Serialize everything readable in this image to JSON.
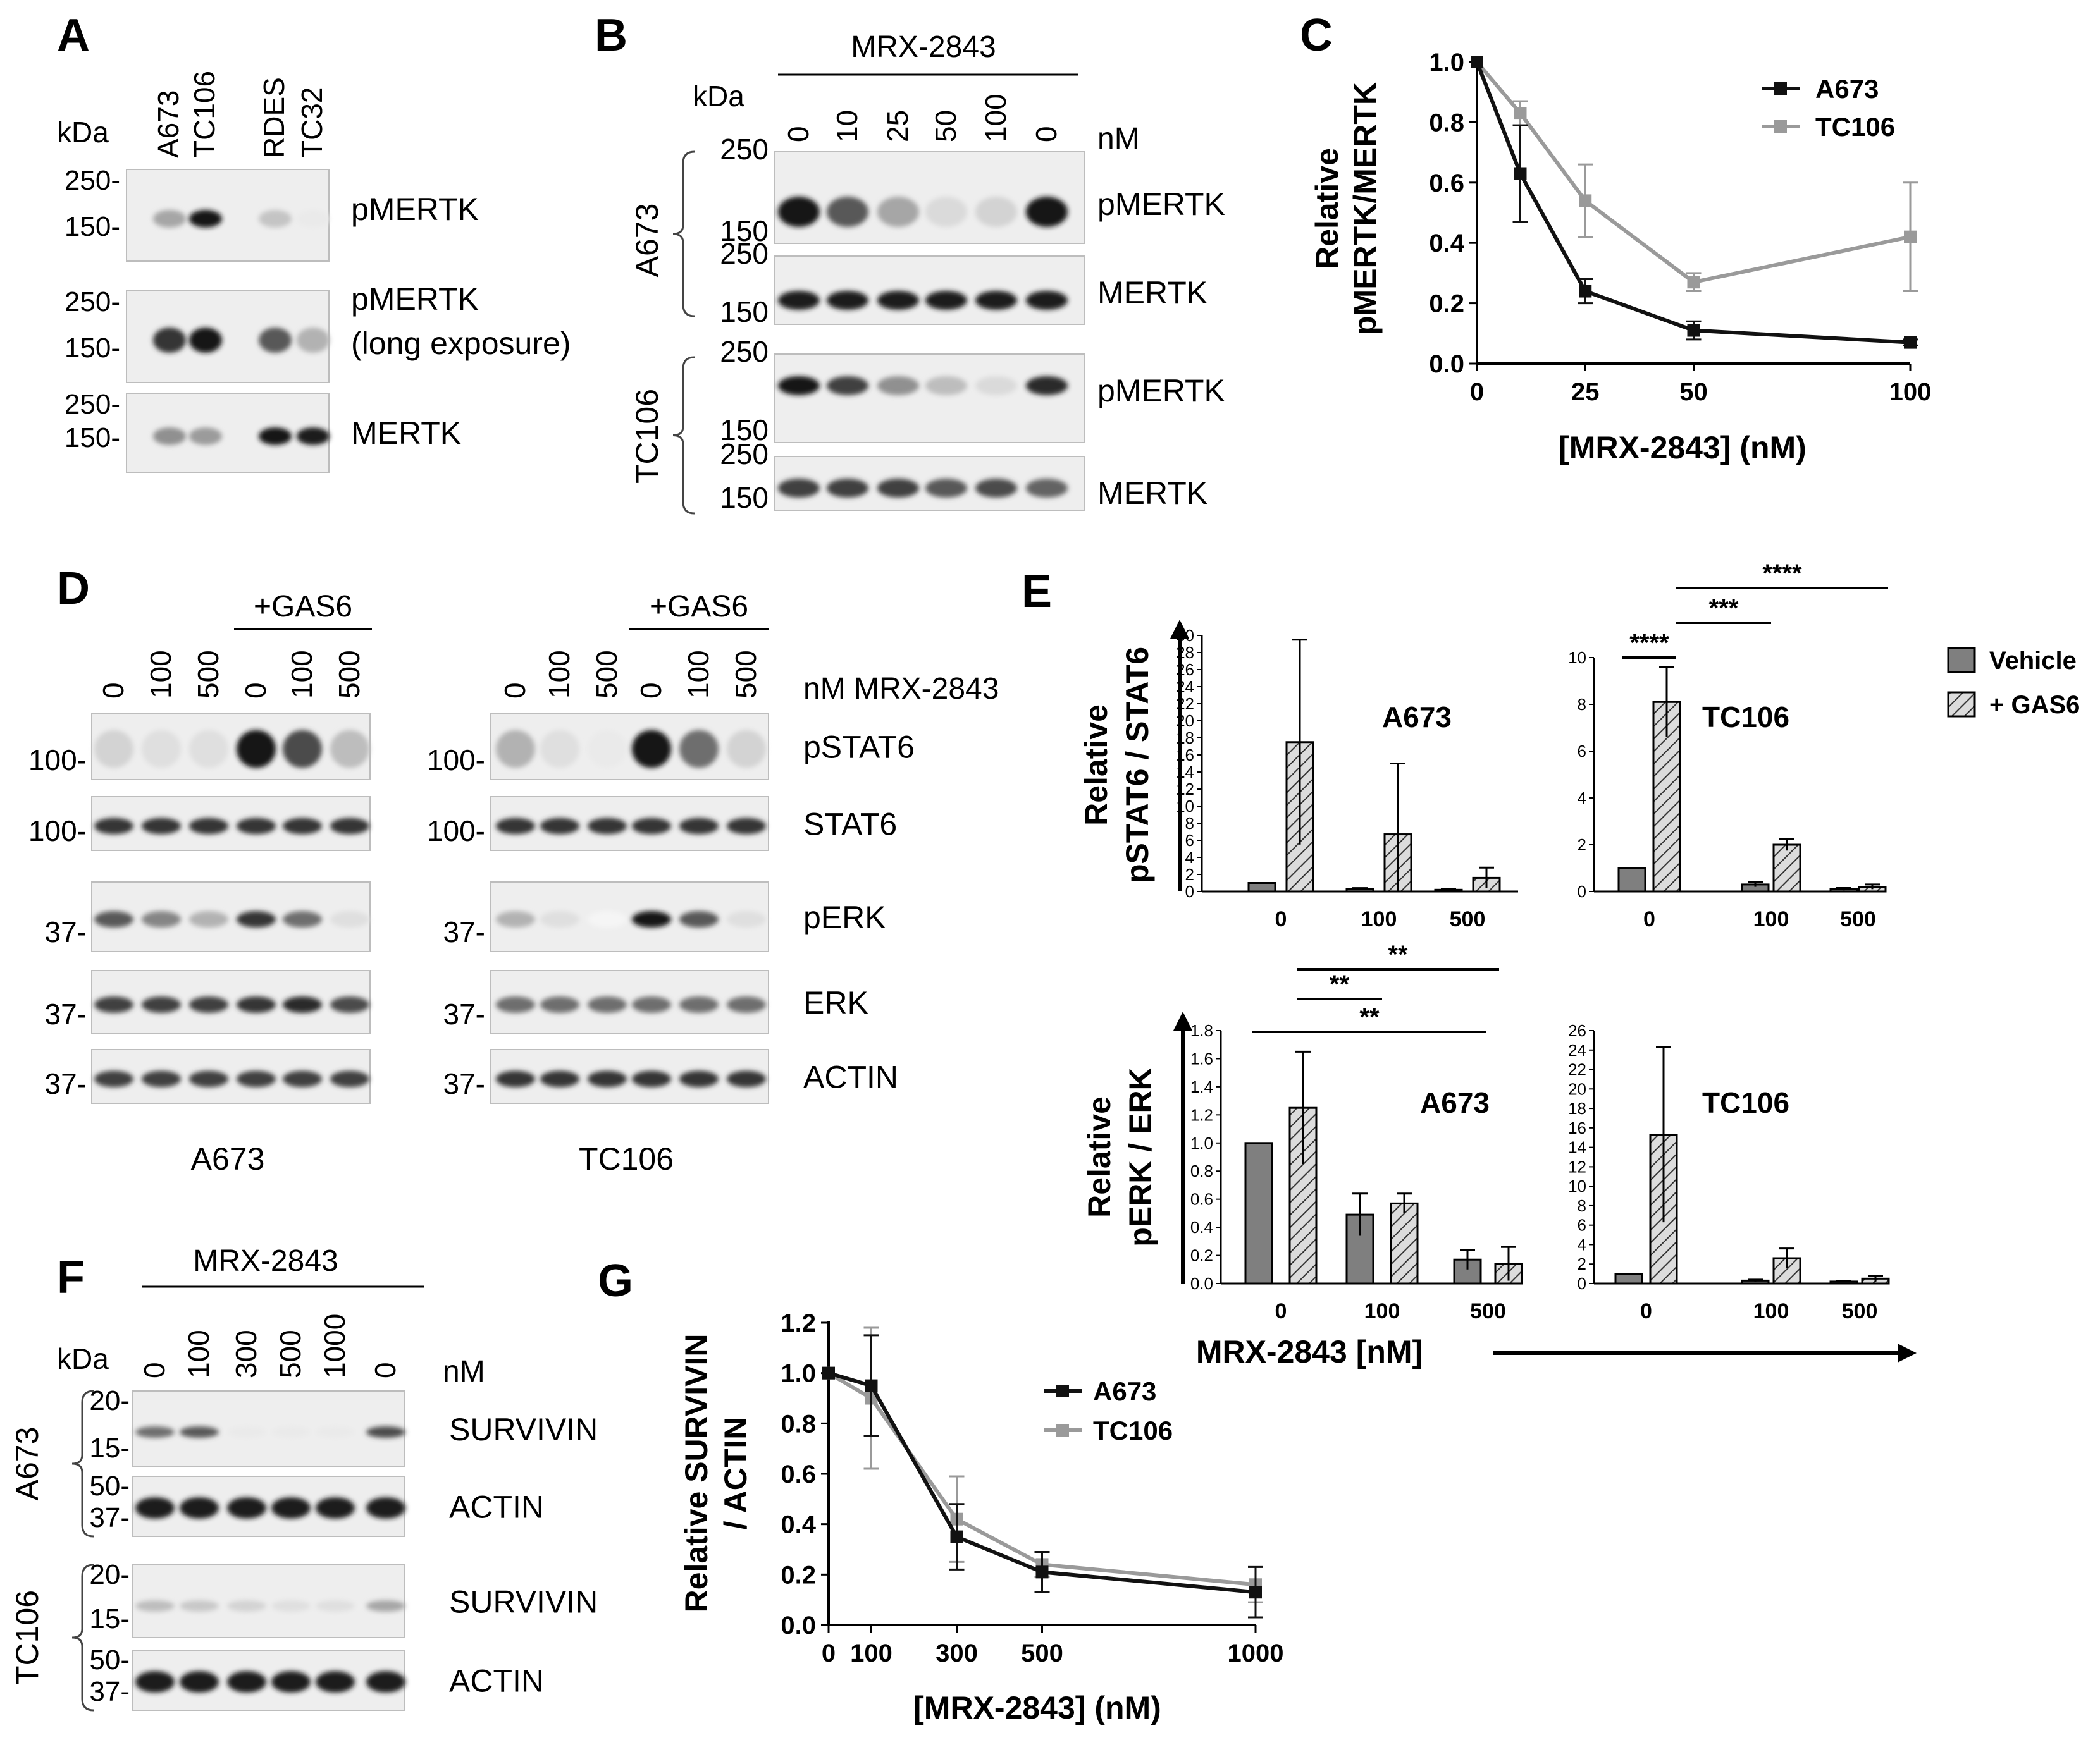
{
  "colors": {
    "black_series": "#111111",
    "gray_series": "#9a9a9a",
    "vehicle_bar": "#7f7f7f",
    "gas6_bar": "#d9d9d9"
  },
  "panel_A": {
    "letter": "A",
    "kda": "kDa",
    "lanes": [
      "A673",
      "TC106",
      "RDES",
      "TC32"
    ],
    "blots": [
      {
        "label": "pMERTK",
        "label2": "",
        "mw": [
          "250-",
          "150-"
        ]
      },
      {
        "label": "pMERTK",
        "label2": "(long exposure)",
        "mw": [
          "250-",
          "150-"
        ]
      },
      {
        "label": "MERTK",
        "label2": "",
        "mw": [
          "250-",
          "150-"
        ]
      }
    ]
  },
  "panel_B": {
    "letter": "B",
    "header": "MRX-2843",
    "kda": "kDa",
    "unit": "nM",
    "lanes": [
      "0",
      "10",
      "25",
      "50",
      "100",
      "0"
    ],
    "groups": [
      {
        "cell": "A673",
        "blots": [
          {
            "label": "pMERTK",
            "mw": [
              "250",
              "150"
            ]
          },
          {
            "label": "MERTK",
            "mw": [
              "250",
              "150"
            ]
          }
        ]
      },
      {
        "cell": "TC106",
        "blots": [
          {
            "label": "pMERTK",
            "mw": [
              "250",
              "150"
            ]
          },
          {
            "label": "MERTK",
            "mw": [
              "250",
              "150"
            ]
          }
        ]
      }
    ]
  },
  "panel_C": {
    "letter": "C",
    "chart_data": {
      "type": "line",
      "ylabel_line1": "Relative",
      "ylabel_line2": "pMERTK/MERTK",
      "xlabel": "[MRX-2843] (nM)",
      "x": [
        0,
        10,
        25,
        50,
        100
      ],
      "xticks": [
        "0",
        "25",
        "50",
        "100"
      ],
      "xtick_values": [
        0,
        25,
        50,
        100
      ],
      "yticks": [
        "0.0",
        "0.2",
        "0.4",
        "0.6",
        "0.8",
        "1.0"
      ],
      "ylim": [
        0,
        1.0
      ],
      "legend_position": "top-right",
      "series": [
        {
          "name": "A673",
          "values": [
            1.0,
            0.63,
            0.24,
            0.11,
            0.07
          ],
          "errors": [
            0,
            0.16,
            0.04,
            0.03,
            0.01
          ]
        },
        {
          "name": "TC106",
          "values": [
            1.0,
            0.83,
            0.54,
            0.27,
            0.42
          ],
          "errors": [
            0,
            0.04,
            0.12,
            0.03,
            0.18
          ]
        }
      ]
    }
  },
  "panel_D": {
    "letter": "D",
    "gas6_label": "+GAS6",
    "unit_label": "nM MRX-2843",
    "lanes": [
      "0",
      "100",
      "500",
      "0",
      "100",
      "500"
    ],
    "rows": [
      {
        "label": "pSTAT6",
        "mw": "100-"
      },
      {
        "label": "STAT6",
        "mw": "100-"
      },
      {
        "label": "pERK",
        "mw": "37-"
      },
      {
        "label": "ERK",
        "mw": "37-"
      },
      {
        "label": "ACTIN",
        "mw": "37-"
      }
    ],
    "cells": [
      "A673",
      "TC106"
    ]
  },
  "panel_E": {
    "letter": "E",
    "legend": [
      "Vehicle",
      "+ GAS6"
    ],
    "xlabel": "MRX-2843 [nM]",
    "top_ylabel": [
      "Relative",
      "pSTAT6 / STAT6"
    ],
    "bottom_ylabel": [
      "Relative",
      "pERK / ERK"
    ],
    "chart_data": [
      {
        "type": "bar",
        "title": "A673",
        "categories": [
          "0",
          "100",
          "500"
        ],
        "ylim": [
          0,
          30
        ],
        "yticks": [
          "0",
          "2",
          "4",
          "6",
          "8",
          "10",
          "12",
          "14",
          "16",
          "18",
          "20",
          "22",
          "24",
          "26",
          "28",
          "30"
        ],
        "series": [
          {
            "name": "Vehicle",
            "values": [
              1.0,
              0.3,
              0.2
            ],
            "errors": [
              0,
              0.1,
              0.1
            ]
          },
          {
            "name": "+ GAS6",
            "values": [
              17.5,
              6.7,
              1.6
            ],
            "errors": [
              12.0,
              8.3,
              1.2
            ]
          }
        ],
        "significance": []
      },
      {
        "type": "bar",
        "title": "TC106",
        "categories": [
          "0",
          "100",
          "500"
        ],
        "ylim": [
          0,
          10
        ],
        "yticks": [
          "0",
          "2",
          "4",
          "6",
          "8",
          "10"
        ],
        "series": [
          {
            "name": "Vehicle",
            "values": [
              1.0,
              0.3,
              0.1
            ],
            "errors": [
              0,
              0.1,
              0.05
            ]
          },
          {
            "name": "+ GAS6",
            "values": [
              8.1,
              2.0,
              0.2
            ],
            "errors": [
              1.5,
              0.25,
              0.1
            ]
          }
        ],
        "significance": [
          "****",
          "***",
          "****"
        ]
      },
      {
        "type": "bar",
        "title": "A673",
        "categories": [
          "0",
          "100",
          "500"
        ],
        "ylim": [
          0,
          1.8
        ],
        "yticks": [
          "0.0",
          "0.2",
          "0.4",
          "0.6",
          "0.8",
          "1.0",
          "1.2",
          "1.4",
          "1.6",
          "1.8"
        ],
        "series": [
          {
            "name": "Vehicle",
            "values": [
              1.0,
              0.49,
              0.17
            ],
            "errors": [
              0,
              0.15,
              0.07
            ]
          },
          {
            "name": "+ GAS6",
            "values": [
              1.25,
              0.57,
              0.14
            ],
            "errors": [
              0.4,
              0.07,
              0.12
            ]
          }
        ],
        "significance": [
          "**",
          "**",
          "**"
        ]
      },
      {
        "type": "bar",
        "title": "TC106",
        "categories": [
          "0",
          "100",
          "500"
        ],
        "ylim": [
          0,
          26
        ],
        "yticks": [
          "0",
          "2",
          "4",
          "6",
          "8",
          "10",
          "12",
          "14",
          "16",
          "18",
          "20",
          "22",
          "24",
          "26"
        ],
        "series": [
          {
            "name": "Vehicle",
            "values": [
              1.0,
              0.3,
              0.2
            ],
            "errors": [
              0,
              0.1,
              0.05
            ]
          },
          {
            "name": "+ GAS6",
            "values": [
              15.3,
              2.6,
              0.5
            ],
            "errors": [
              9.0,
              1.0,
              0.3
            ]
          }
        ],
        "significance": []
      }
    ]
  },
  "panel_F": {
    "letter": "F",
    "header": "MRX-2843",
    "kda": "kDa",
    "unit": "nM",
    "lanes": [
      "0",
      "100",
      "300",
      "500",
      "1000",
      "0"
    ],
    "groups": [
      {
        "cell": "A673",
        "blots": [
          {
            "label": "SURVIVIN",
            "mw": [
              "20-",
              "15-"
            ]
          },
          {
            "label": "ACTIN",
            "mw": [
              "50-",
              "37-"
            ]
          }
        ]
      },
      {
        "cell": "TC106",
        "blots": [
          {
            "label": "SURVIVIN",
            "mw": [
              "20-",
              "15-"
            ]
          },
          {
            "label": "ACTIN",
            "mw": [
              "50-",
              "37-"
            ]
          }
        ]
      }
    ]
  },
  "panel_G": {
    "letter": "G",
    "chart_data": {
      "type": "line",
      "ylabel_line1": "Relative SURVIVIN",
      "ylabel_line2": "/ ACTIN",
      "xlabel": "[MRX-2843] (nM)",
      "x": [
        0,
        100,
        300,
        500,
        1000
      ],
      "xticks": [
        "0",
        "100",
        "300",
        "500",
        "1000"
      ],
      "yticks": [
        "0.0",
        "0.2",
        "0.4",
        "0.6",
        "0.8",
        "1.0",
        "1.2"
      ],
      "ylim": [
        0,
        1.2
      ],
      "legend_position": "top-right",
      "series": [
        {
          "name": "A673",
          "values": [
            1.0,
            0.95,
            0.35,
            0.21,
            0.13
          ],
          "errors": [
            0,
            0.2,
            0.13,
            0.08,
            0.1
          ]
        },
        {
          "name": "TC106",
          "values": [
            1.0,
            0.9,
            0.42,
            0.24,
            0.16
          ],
          "errors": [
            0,
            0.28,
            0.17,
            0.05,
            0.07
          ]
        }
      ]
    }
  }
}
